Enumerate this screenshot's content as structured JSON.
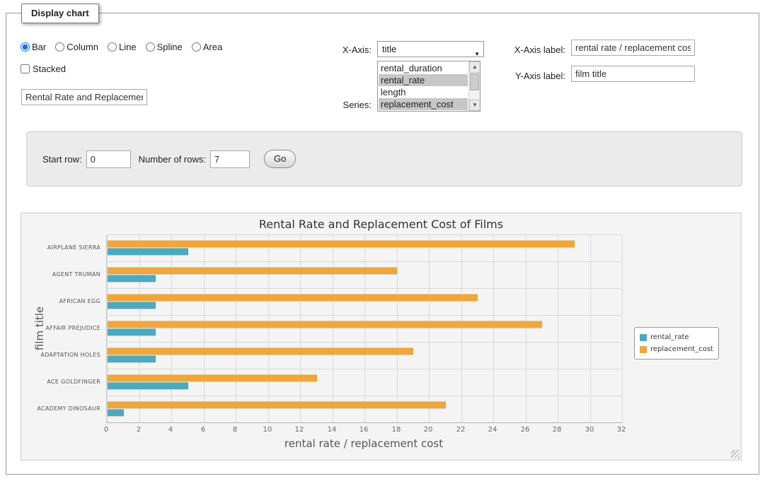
{
  "page": {
    "legend_title": "Display chart"
  },
  "controls": {
    "chart_types": [
      {
        "label": "Bar",
        "checked": true
      },
      {
        "label": "Column",
        "checked": false
      },
      {
        "label": "Line",
        "checked": false
      },
      {
        "label": "Spline",
        "checked": false
      },
      {
        "label": "Area",
        "checked": false
      }
    ],
    "stacked_label": "Stacked",
    "stacked_checked": false,
    "title_value": "Rental Rate and Replacement Cost of Films",
    "xaxis_label": "X-Axis:",
    "xaxis_selected": "title",
    "series_label": "Series:",
    "series_options": [
      {
        "label": "rental_duration",
        "selected": false
      },
      {
        "label": "rental_rate",
        "selected": true
      },
      {
        "label": "length",
        "selected": false
      },
      {
        "label": "replacement_cost",
        "selected": true
      }
    ],
    "xaxis_label_label": "X-Axis label:",
    "xaxis_label_value": "rental rate / replacement cost",
    "yaxis_label_label": "Y-Axis label:",
    "yaxis_label_value": "film title"
  },
  "row_controls": {
    "start_row_label": "Start row:",
    "start_row_value": "0",
    "num_rows_label": "Number of rows:",
    "num_rows_value": "7",
    "go_label": "Go"
  },
  "chart_data": {
    "type": "bar",
    "orientation": "horizontal",
    "title": "Rental Rate and Replacement Cost of Films",
    "categories": [
      "AIRPLANE SIERRA",
      "AGENT TRUMAN",
      "AFRICAN EGG",
      "AFFAIR PREJUDICE",
      "ADAPTATION HOLES",
      "ACE GOLDFINGER",
      "ACADEMY DINOSAUR"
    ],
    "series": [
      {
        "name": "rental_rate",
        "color": "#4da9bc",
        "values": [
          4.99,
          2.99,
          2.99,
          2.99,
          2.99,
          4.99,
          0.99
        ]
      },
      {
        "name": "replacement_cost",
        "color": "#efa63a",
        "values": [
          28.99,
          17.99,
          22.99,
          26.99,
          18.99,
          12.99,
          20.99
        ]
      }
    ],
    "xlabel": "rental rate / replacement cost",
    "ylabel": "film title",
    "xlim": [
      0,
      32
    ],
    "xticks": [
      0,
      2,
      4,
      6,
      8,
      10,
      12,
      14,
      16,
      18,
      20,
      22,
      24,
      26,
      28,
      30,
      32
    ],
    "grid": true,
    "legend_position": "right",
    "group_order_top_to_bottom": [
      "replacement_cost",
      "rental_rate"
    ]
  }
}
